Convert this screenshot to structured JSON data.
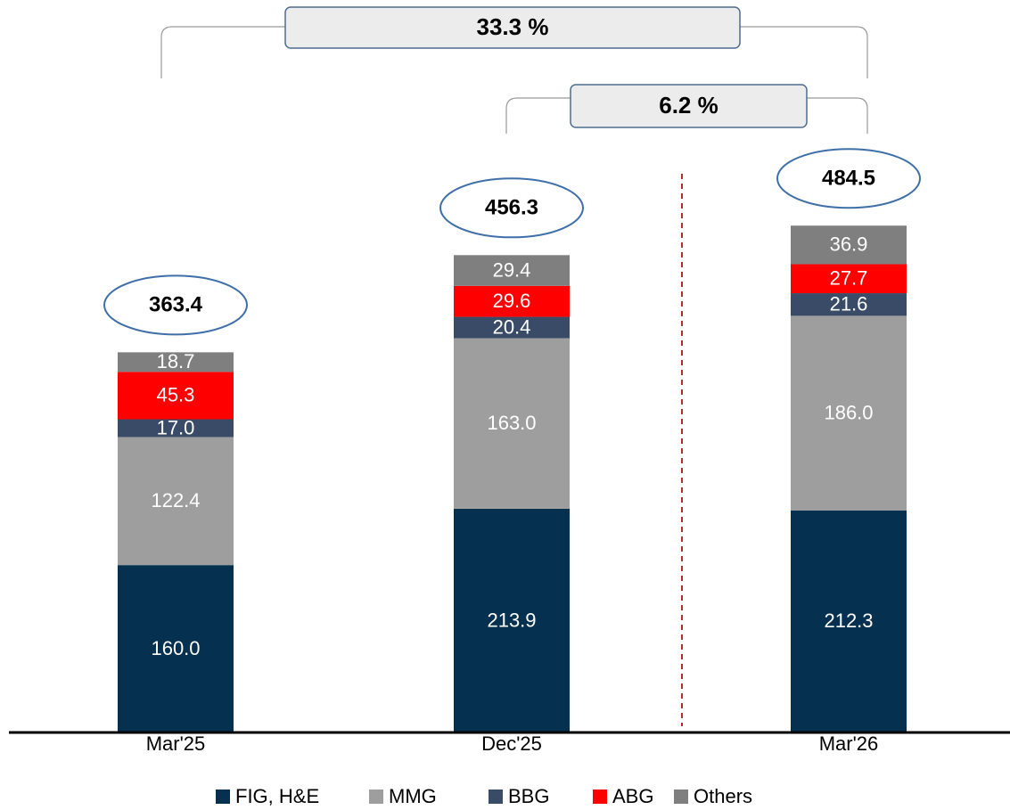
{
  "chart_data": {
    "type": "stacked_bar",
    "categories": [
      "Mar'25",
      "Dec'25",
      "Mar'26"
    ],
    "series": [
      {
        "name": "FIG, H&E",
        "color": "#06304f",
        "values": [
          160.0,
          213.9,
          212.3
        ],
        "value_labels": [
          "160.0",
          "213.9",
          "212.3"
        ]
      },
      {
        "name": "MMG",
        "color": "#9d9e9d",
        "values": [
          122.4,
          163.0,
          186.0
        ],
        "value_labels": [
          "122.4",
          "163.0",
          "186.0"
        ]
      },
      {
        "name": "BBG",
        "color": "#3a4b67",
        "values": [
          17.0,
          20.4,
          21.6
        ],
        "value_labels": [
          "17.0",
          "20.4",
          "21.6"
        ]
      },
      {
        "name": "ABG",
        "color": "#fe0000",
        "values": [
          45.3,
          29.6,
          27.7
        ],
        "value_labels": [
          "45.3",
          "29.6",
          "27.7"
        ]
      },
      {
        "name": "Others",
        "color": "#7f7f7f",
        "values": [
          18.7,
          29.4,
          36.9
        ],
        "value_labels": [
          "18.7",
          "29.4",
          "36.9"
        ]
      }
    ],
    "totals": [
      363.4,
      456.3,
      484.5
    ],
    "annotations": [
      "33.3 %",
      "6.2 %"
    ],
    "ylim": [
      0,
      500
    ],
    "legend": "bottom"
  }
}
